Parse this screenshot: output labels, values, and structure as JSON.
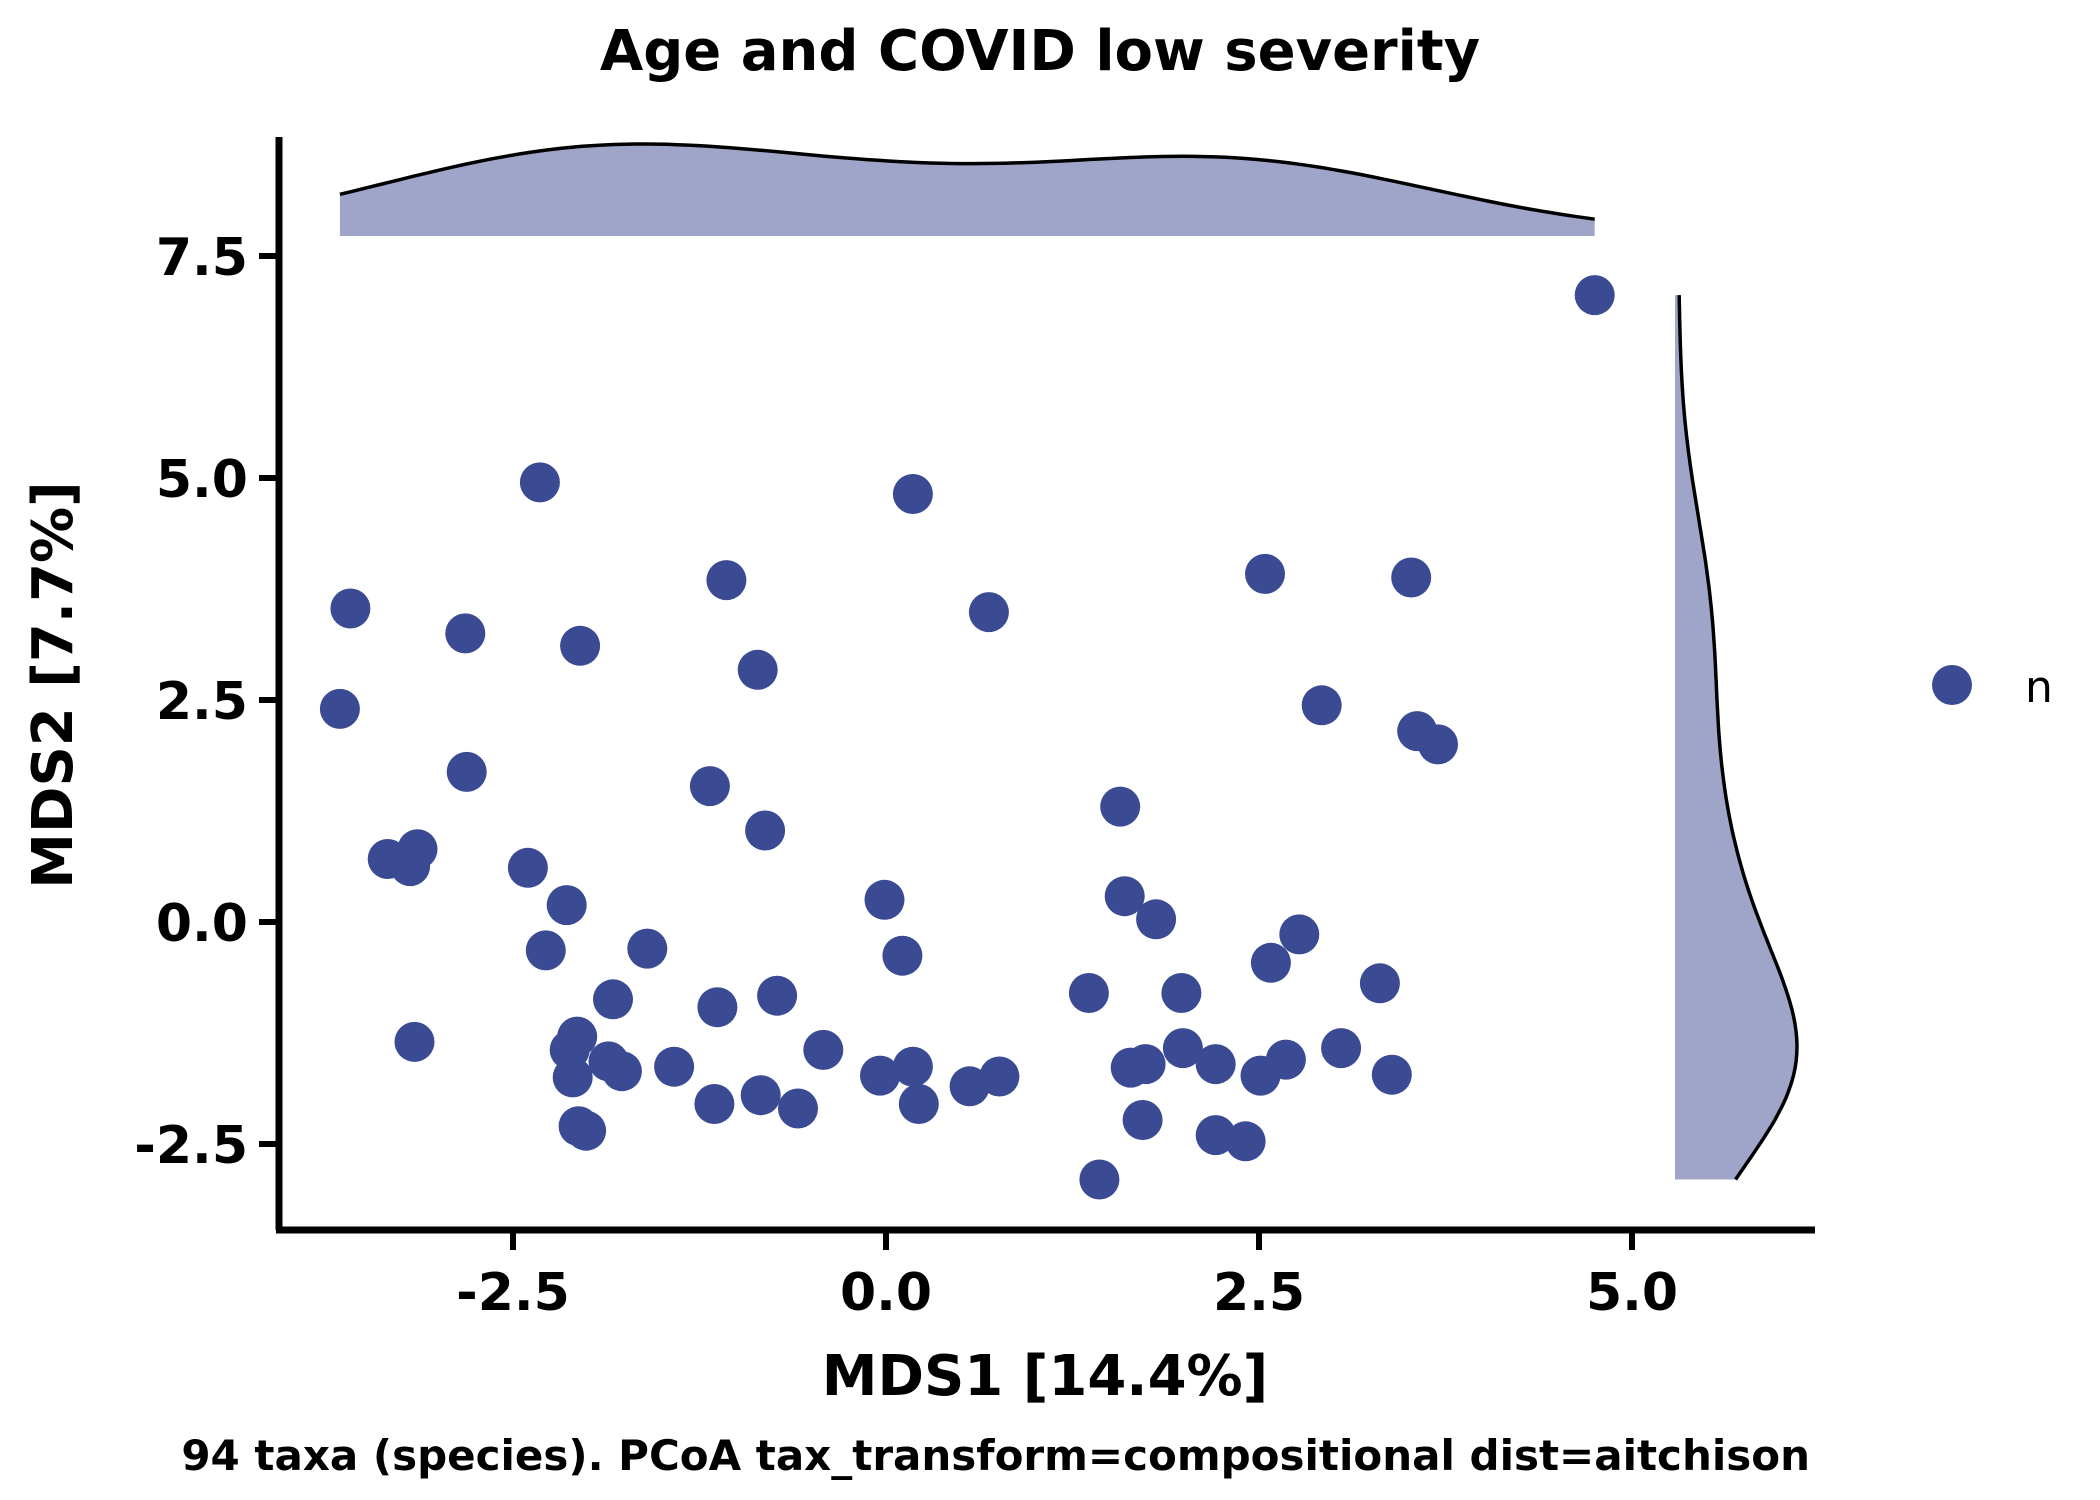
{
  "chart_data": {
    "type": "scatter",
    "title": "Age and COVID low severity",
    "xlabel": "MDS1 [14.4%]",
    "ylabel": "MDS2 [7.7%]",
    "caption": "94 taxa (species). PCoA tax_transform=compositional dist=aitchison",
    "xlim": [
      -4.7,
      6.2
    ],
    "ylim": [
      -3.4,
      8.9
    ],
    "x_ticks": [
      -2.5,
      0.0,
      2.5,
      5.0
    ],
    "x_tick_labels": [
      "-2.5",
      "0.0",
      "2.5",
      "5.0"
    ],
    "y_ticks": [
      -2.5,
      0.0,
      2.5,
      5.0,
      7.5
    ],
    "y_tick_labels": [
      "-2.5",
      "0.0",
      "2.5",
      "5.0",
      "7.5"
    ],
    "grid": false,
    "legend": {
      "position": "right",
      "entries": [
        {
          "label": "n",
          "color": "#3a4a93"
        }
      ]
    },
    "marginal_density": true,
    "series": [
      {
        "name": "n",
        "color": "#3a4a93",
        "points": [
          [
            4.75,
            7.06
          ],
          [
            -2.32,
            4.95
          ],
          [
            0.18,
            4.82
          ],
          [
            -3.59,
            3.53
          ],
          [
            -1.07,
            3.85
          ],
          [
            0.69,
            3.49
          ],
          [
            2.54,
            3.92
          ],
          [
            3.52,
            3.88
          ],
          [
            -2.82,
            3.25
          ],
          [
            -2.05,
            3.11
          ],
          [
            -0.86,
            2.84
          ],
          [
            2.92,
            2.44
          ],
          [
            3.56,
            2.15
          ],
          [
            3.7,
            2.0
          ],
          [
            -3.66,
            2.4
          ],
          [
            -2.81,
            1.69
          ],
          [
            -1.18,
            1.53
          ],
          [
            -0.81,
            1.03
          ],
          [
            1.57,
            1.3
          ],
          [
            -3.34,
            0.71
          ],
          [
            -3.19,
            0.63
          ],
          [
            -3.14,
            0.82
          ],
          [
            -2.4,
            0.61
          ],
          [
            -2.14,
            0.19
          ],
          [
            -0.01,
            0.25
          ],
          [
            1.6,
            0.29
          ],
          [
            1.81,
            0.03
          ],
          [
            2.77,
            -0.14
          ],
          [
            -2.28,
            -0.32
          ],
          [
            -1.6,
            -0.3
          ],
          [
            0.11,
            -0.38
          ],
          [
            2.58,
            -0.46
          ],
          [
            3.31,
            -0.69
          ],
          [
            -1.83,
            -0.87
          ],
          [
            -1.13,
            -0.96
          ],
          [
            -0.73,
            -0.83
          ],
          [
            1.36,
            -0.8
          ],
          [
            1.98,
            -0.8
          ],
          [
            -3.16,
            -1.35
          ],
          [
            -2.07,
            -1.29
          ],
          [
            -2.12,
            -1.44
          ],
          [
            -1.86,
            -1.57
          ],
          [
            -1.77,
            -1.68
          ],
          [
            -1.42,
            -1.63
          ],
          [
            -2.1,
            -1.75
          ],
          [
            -0.42,
            -1.44
          ],
          [
            -0.04,
            -1.73
          ],
          [
            0.18,
            -1.63
          ],
          [
            0.56,
            -1.85
          ],
          [
            0.76,
            -1.74
          ],
          [
            1.64,
            -1.64
          ],
          [
            1.74,
            -1.6
          ],
          [
            1.99,
            -1.42
          ],
          [
            2.21,
            -1.6
          ],
          [
            2.51,
            -1.73
          ],
          [
            2.68,
            -1.55
          ],
          [
            3.05,
            -1.42
          ],
          [
            3.39,
            -1.72
          ],
          [
            -1.15,
            -2.05
          ],
          [
            -0.84,
            -1.95
          ],
          [
            -0.59,
            -2.1
          ],
          [
            0.22,
            -2.05
          ],
          [
            1.72,
            -2.23
          ],
          [
            2.21,
            -2.4
          ],
          [
            2.41,
            -2.47
          ],
          [
            -2.06,
            -2.3
          ],
          [
            -2.01,
            -2.35
          ],
          [
            1.43,
            -2.9
          ]
        ]
      }
    ]
  }
}
